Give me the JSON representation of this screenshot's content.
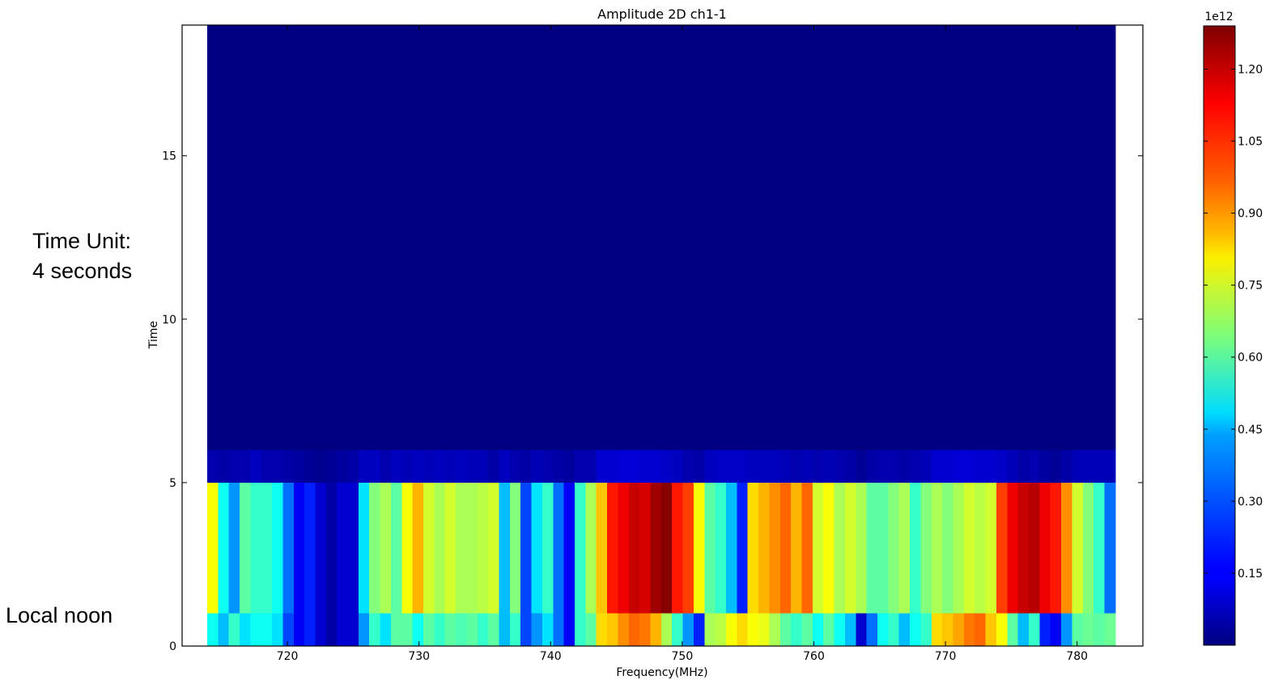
{
  "annotations": {
    "time_unit_line1": "Time Unit:",
    "time_unit_line2": "4 seconds",
    "local_noon": "Local noon"
  },
  "chart_data": {
    "type": "heatmap",
    "title": "Amplitude 2D ch1-1",
    "xlabel": "Frequency(MHz)",
    "ylabel": "Time",
    "xlim": [
      712,
      785
    ],
    "ylim": [
      0,
      19
    ],
    "xticks": [
      720,
      730,
      740,
      750,
      760,
      770,
      780
    ],
    "yticks": [
      0,
      5,
      10,
      15
    ],
    "data_x_range": [
      713.9,
      782.9
    ],
    "time_bins": [
      {
        "y0": 0,
        "y1": 1,
        "label": "row-0"
      },
      {
        "y0": 1,
        "y1": 5,
        "label": "row-1-5"
      },
      {
        "y0": 5,
        "y1": 6,
        "label": "row-5-6"
      },
      {
        "y0": 6,
        "y1": 19,
        "label": "row-6-19"
      }
    ],
    "rows": [
      [
        0.5,
        0.4,
        0.55,
        0.45,
        0.5,
        0.5,
        0.45,
        0.25,
        0.15,
        0.2,
        0.1,
        0.05,
        0.1,
        0.1,
        0.35,
        0.55,
        0.45,
        0.6,
        0.6,
        0.5,
        0.6,
        0.55,
        0.6,
        0.58,
        0.6,
        0.55,
        0.6,
        0.4,
        0.55,
        0.25,
        0.35,
        0.45,
        0.3,
        0.15,
        0.55,
        0.6,
        0.85,
        0.88,
        0.95,
        1.0,
        0.98,
        0.9,
        0.7,
        0.55,
        0.35,
        0.2,
        0.7,
        0.72,
        0.8,
        0.85,
        0.8,
        0.78,
        0.7,
        0.6,
        0.55,
        0.6,
        0.5,
        0.6,
        0.5,
        0.4,
        0.1,
        0.3,
        0.5,
        0.55,
        0.4,
        0.5,
        0.55,
        0.85,
        0.88,
        0.92,
        0.98,
        1.0,
        0.88,
        0.8,
        0.6,
        0.4,
        0.55,
        0.2,
        0.15,
        0.35,
        0.6,
        0.62,
        0.6,
        0.62
      ],
      [
        0.8,
        0.5,
        0.35,
        0.6,
        0.55,
        0.55,
        0.5,
        0.3,
        0.15,
        0.2,
        0.1,
        0.05,
        0.1,
        0.1,
        0.45,
        0.65,
        0.7,
        0.6,
        0.8,
        0.9,
        0.75,
        0.7,
        0.75,
        0.7,
        0.7,
        0.72,
        0.75,
        0.4,
        0.65,
        0.25,
        0.45,
        0.55,
        0.3,
        0.15,
        0.55,
        0.7,
        0.88,
        1.1,
        1.15,
        1.2,
        1.18,
        1.25,
        1.28,
        1.1,
        1.05,
        0.8,
        0.6,
        0.55,
        0.4,
        0.2,
        0.85,
        0.9,
        0.95,
        1.0,
        0.9,
        1.0,
        0.75,
        0.8,
        0.7,
        0.75,
        0.7,
        0.6,
        0.6,
        0.65,
        0.7,
        0.55,
        0.65,
        0.7,
        0.65,
        0.7,
        0.75,
        0.72,
        0.75,
        1.05,
        1.15,
        1.2,
        1.22,
        1.15,
        1.1,
        0.95,
        0.75,
        0.65,
        0.55,
        0.3
      ],
      [
        0.06,
        0.05,
        0.06,
        0.06,
        0.08,
        0.06,
        0.06,
        0.05,
        0.04,
        0.03,
        0.02,
        0.03,
        0.04,
        0.05,
        0.08,
        0.08,
        0.06,
        0.08,
        0.07,
        0.08,
        0.07,
        0.08,
        0.07,
        0.08,
        0.07,
        0.07,
        0.05,
        0.08,
        0.06,
        0.05,
        0.07,
        0.06,
        0.05,
        0.04,
        0.06,
        0.06,
        0.1,
        0.1,
        0.11,
        0.11,
        0.1,
        0.1,
        0.09,
        0.08,
        0.06,
        0.05,
        0.08,
        0.09,
        0.09,
        0.09,
        0.08,
        0.08,
        0.08,
        0.07,
        0.06,
        0.07,
        0.06,
        0.07,
        0.06,
        0.05,
        0.03,
        0.05,
        0.06,
        0.06,
        0.05,
        0.06,
        0.07,
        0.1,
        0.1,
        0.11,
        0.11,
        0.1,
        0.1,
        0.09,
        0.07,
        0.05,
        0.06,
        0.04,
        0.03,
        0.05,
        0.07,
        0.07,
        0.07,
        0.07
      ],
      [
        0.0
      ]
    ],
    "colorbar": {
      "offset_label": "1e12",
      "ticks": [
        0.15,
        0.3,
        0.45,
        0.6,
        0.75,
        0.9,
        1.05,
        1.2
      ],
      "tick_labels": [
        "0.15",
        "0.30",
        "0.45",
        "0.60",
        "0.75",
        "0.90",
        "1.05",
        "1.20"
      ],
      "range": [
        0.0,
        1.29
      ],
      "colormap": "jet"
    }
  }
}
